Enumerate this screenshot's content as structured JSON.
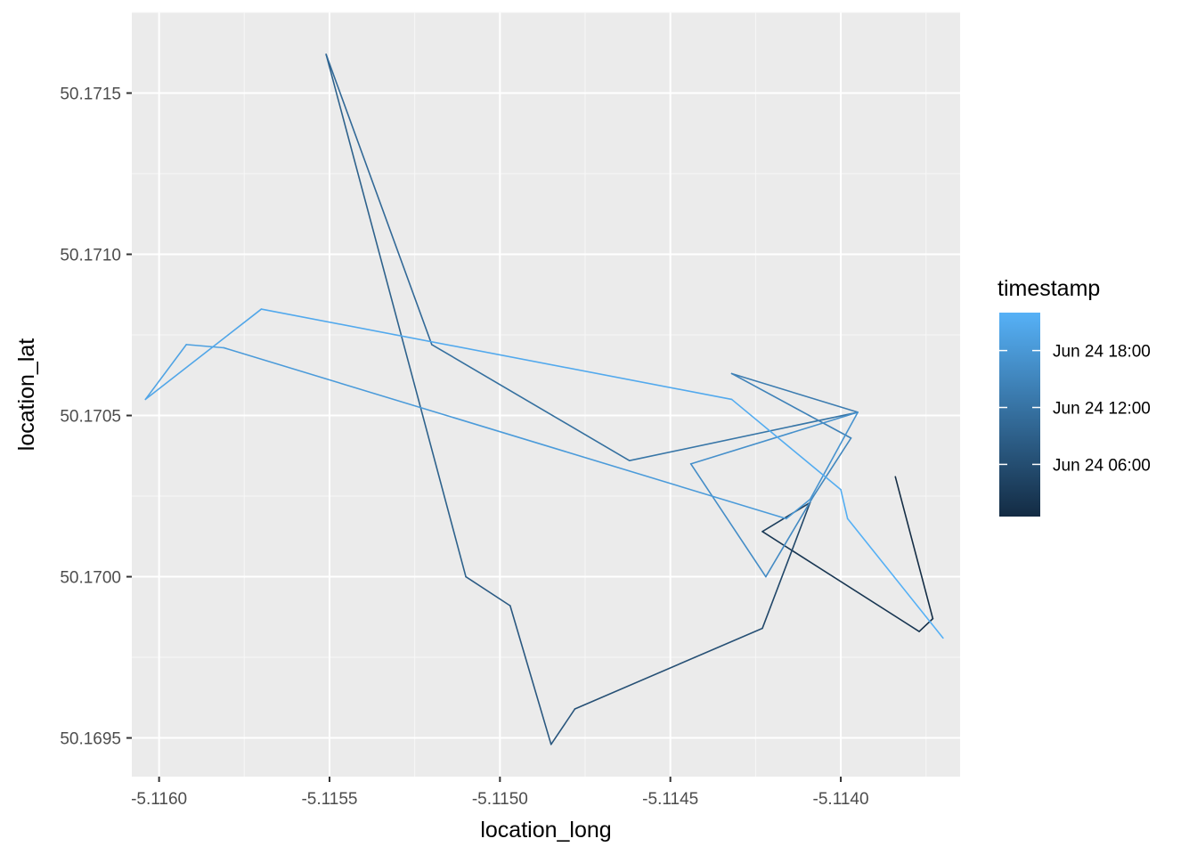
{
  "chart_data": {
    "type": "line",
    "xlabel": "location_long",
    "ylabel": "location_lat",
    "xlim": [
      -5.11608,
      -5.11365
    ],
    "ylim": [
      50.16938,
      50.17175
    ],
    "x_ticks": [
      {
        "value": -5.116,
        "label": "-5.1160"
      },
      {
        "value": -5.1155,
        "label": "-5.1155"
      },
      {
        "value": -5.115,
        "label": "-5.1150"
      },
      {
        "value": -5.1145,
        "label": "-5.1145"
      },
      {
        "value": -5.114,
        "label": "-5.1140"
      }
    ],
    "y_ticks": [
      {
        "value": 50.1695,
        "label": "50.1695"
      },
      {
        "value": 50.17,
        "label": "50.1700"
      },
      {
        "value": 50.1705,
        "label": "50.1705"
      },
      {
        "value": 50.171,
        "label": "50.1710"
      },
      {
        "value": 50.1715,
        "label": "50.1715"
      }
    ],
    "grid": true,
    "legend": {
      "title": "timestamp",
      "position": "right",
      "gradient_low": "#132B43",
      "gradient_high": "#56B1F7",
      "range_hours": [
        0.5,
        22
      ],
      "breaks": [
        {
          "hours": 6,
          "label": "Jun 24 06:00"
        },
        {
          "hours": 12,
          "label": "Jun 24 12:00"
        },
        {
          "hours": 18,
          "label": "Jun 24 18:00"
        }
      ]
    },
    "colors": {
      "panel_bg": "#EBEBEB",
      "grid_major": "#FFFFFF",
      "grid_minor": "#F7F7F7"
    },
    "series": [
      {
        "points": [
          {
            "x": -5.11384,
            "y": 50.17031,
            "t": 0.5
          },
          {
            "x": -5.11373,
            "y": 50.16987,
            "t": 1.0
          },
          {
            "x": -5.11377,
            "y": 50.16983,
            "t": 1.5
          },
          {
            "x": -5.11423,
            "y": 50.17014,
            "t": 3.0
          },
          {
            "x": -5.11409,
            "y": 50.17023,
            "t": 4.0
          },
          {
            "x": -5.11423,
            "y": 50.16984,
            "t": 6.0
          },
          {
            "x": -5.11478,
            "y": 50.16959,
            "t": 7.0
          },
          {
            "x": -5.11485,
            "y": 50.16948,
            "t": 7.5
          },
          {
            "x": -5.11497,
            "y": 50.16991,
            "t": 8.0
          },
          {
            "x": -5.1151,
            "y": 50.17,
            "t": 8.5
          },
          {
            "x": -5.11551,
            "y": 50.17162,
            "t": 10.0
          },
          {
            "x": -5.1152,
            "y": 50.17072,
            "t": 11.0
          },
          {
            "x": -5.11462,
            "y": 50.17036,
            "t": 12.0
          },
          {
            "x": -5.11395,
            "y": 50.17051,
            "t": 13.0
          },
          {
            "x": -5.11432,
            "y": 50.17063,
            "t": 14.0
          },
          {
            "x": -5.11397,
            "y": 50.17043,
            "t": 15.0
          },
          {
            "x": -5.11408,
            "y": 50.17025,
            "t": 15.5
          },
          {
            "x": -5.11422,
            "y": 50.17,
            "t": 16.0
          },
          {
            "x": -5.11444,
            "y": 50.17035,
            "t": 16.5
          },
          {
            "x": -5.11395,
            "y": 50.17051,
            "t": 17.0
          },
          {
            "x": -5.11409,
            "y": 50.17024,
            "t": 17.5
          },
          {
            "x": -5.11416,
            "y": 50.17018,
            "t": 18.0
          },
          {
            "x": -5.11581,
            "y": 50.17071,
            "t": 19.0
          },
          {
            "x": -5.11592,
            "y": 50.17072,
            "t": 19.5
          },
          {
            "x": -5.11604,
            "y": 50.17055,
            "t": 20.0
          },
          {
            "x": -5.1157,
            "y": 50.17083,
            "t": 20.5
          },
          {
            "x": -5.11432,
            "y": 50.17055,
            "t": 21.0
          },
          {
            "x": -5.114,
            "y": 50.17027,
            "t": 21.3
          },
          {
            "x": -5.11398,
            "y": 50.17018,
            "t": 21.6
          },
          {
            "x": -5.1137,
            "y": 50.16981,
            "t": 22.0
          }
        ]
      }
    ]
  }
}
